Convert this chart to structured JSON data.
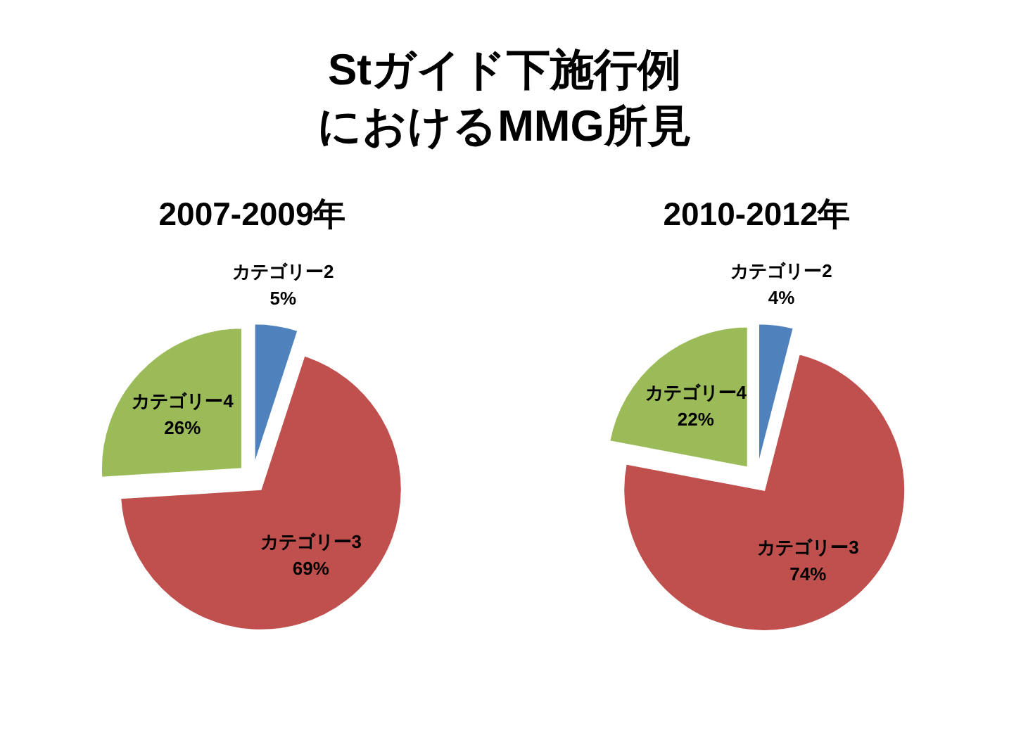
{
  "chart_data": [
    {
      "type": "pie",
      "title": "Stガイド下施行例におけるMMG所見",
      "subtitle": "2007-2009年",
      "categories": [
        "カテゴリー2",
        "カテゴリー3",
        "カテゴリー4"
      ],
      "values": [
        5,
        69,
        26
      ],
      "colors": [
        "#4f81bd",
        "#c0504d",
        "#9bbb59"
      ],
      "value_labels": [
        "5%",
        "69%",
        "26%"
      ]
    },
    {
      "type": "pie",
      "subtitle": "2010-2012年",
      "categories": [
        "カテゴリー2",
        "カテゴリー3",
        "カテゴリー4"
      ],
      "values": [
        4,
        74,
        22
      ],
      "colors": [
        "#4f81bd",
        "#c0504d",
        "#9bbb59"
      ],
      "value_labels": [
        "4%",
        "74%",
        "22%"
      ]
    }
  ]
}
